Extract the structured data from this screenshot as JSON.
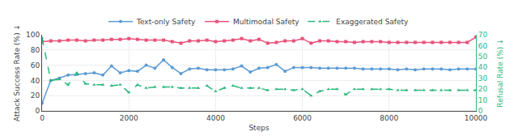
{
  "chart_data": {
    "type": "line",
    "xlabel": "Steps",
    "ylabel": "Attack Success Rate (%) ↓",
    "y2label": "Refusal Rate (%) ↓",
    "x": [
      0,
      200,
      400,
      600,
      800,
      1000,
      1200,
      1400,
      1600,
      1800,
      2000,
      2200,
      2400,
      2600,
      2800,
      3000,
      3200,
      3400,
      3600,
      3800,
      4000,
      4200,
      4400,
      4600,
      4800,
      5000,
      5200,
      5400,
      5600,
      5800,
      6000,
      6200,
      6400,
      6600,
      6800,
      7000,
      7200,
      7400,
      7600,
      7800,
      8000,
      8200,
      8400,
      8600,
      8800,
      9000,
      9200,
      9400,
      9600,
      9800,
      10000
    ],
    "xlim": [
      0,
      10000
    ],
    "xticks": [
      0,
      2000,
      4000,
      6000,
      8000,
      10000
    ],
    "ylim": [
      0,
      100
    ],
    "yticks": [
      0,
      20,
      40,
      60,
      80,
      100
    ],
    "y2lim": [
      0,
      70
    ],
    "y2ticks": [
      0,
      10,
      20,
      30,
      40,
      50,
      60,
      70
    ],
    "grid": true,
    "legend": "top",
    "series": [
      {
        "name": "Text-only Safety",
        "color": "#5b9bd5",
        "marker": "circle",
        "line_style": "solid",
        "values": [
          10,
          40,
          43,
          47,
          48,
          49,
          50,
          47,
          59,
          50,
          53,
          52,
          60,
          56,
          67,
          57,
          49,
          55,
          56,
          54,
          54,
          54,
          55,
          59,
          51,
          56,
          57,
          61,
          52,
          57,
          57,
          57,
          56,
          56,
          56,
          56,
          56,
          55,
          55,
          55,
          55,
          54,
          55,
          54,
          55,
          55,
          55,
          54,
          55,
          55,
          55
        ]
      },
      {
        "name": "Multimodal Safety",
        "color": "#e8527a",
        "marker": "square",
        "line_style": "solid",
        "values": [
          91,
          92,
          92,
          93,
          93,
          92,
          93,
          93,
          94,
          94,
          95,
          94,
          93,
          93,
          93,
          91,
          89,
          92,
          92,
          93,
          91,
          92,
          93,
          95,
          92,
          94,
          89,
          90,
          92,
          92,
          95,
          89,
          92,
          92,
          91,
          91,
          90,
          91,
          91,
          91,
          90,
          90,
          90,
          90,
          90,
          90,
          90,
          90,
          90,
          90,
          97
        ]
      },
      {
        "name": "Exaggerated Safety",
        "color": "#2db87d",
        "marker": "triangle",
        "line_style": "dashed",
        "axis": "y2",
        "values": [
          67,
          28,
          29,
          24,
          35,
          25,
          24,
          24,
          23,
          24,
          17,
          24,
          21,
          22,
          22,
          22,
          21,
          21,
          21,
          23,
          18,
          21,
          23,
          21,
          21,
          21,
          19,
          20,
          20,
          19,
          20,
          14,
          18,
          20,
          20,
          15,
          20,
          20,
          20,
          20,
          20,
          19,
          19,
          19,
          19,
          19,
          19,
          19,
          19,
          19,
          19
        ]
      }
    ]
  }
}
